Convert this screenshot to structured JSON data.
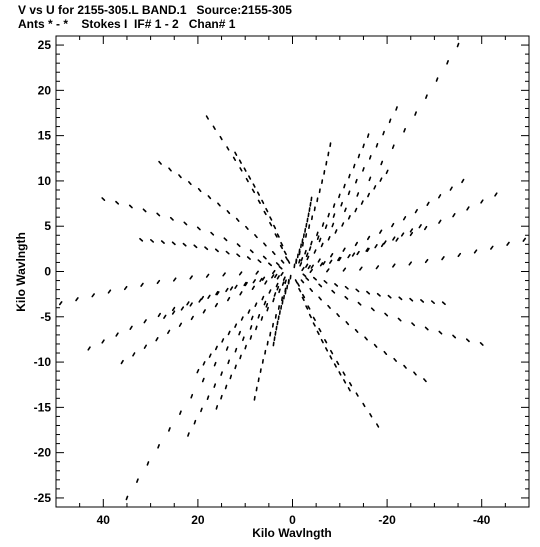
{
  "header": {
    "line1": "V vs U for 2155-305.L BAND.1   Source:2155-305",
    "line2": "Ants * - *    Stokes I  IF# 1 - 2   Chan# 1"
  },
  "chart_data": {
    "type": "scatter",
    "xlabel": "Kilo Wavlngth",
    "ylabel": "Kilo Wavlngth",
    "xlim": [
      50,
      -50
    ],
    "ylim": [
      -26,
      26
    ],
    "x_ticks": [
      40,
      20,
      0,
      -20,
      -40
    ],
    "y_ticks": [
      -25,
      -20,
      -15,
      -10,
      -5,
      0,
      5,
      10,
      15,
      20,
      25
    ],
    "grid": false,
    "series": [
      {
        "baselines": [
          {
            "dx": -35,
            "dy": 25
          },
          {
            "dx": -16,
            "dy": 15
          },
          {
            "dx": -49,
            "dy": 3.5
          },
          {
            "dx": -43,
            "dy": 8.5
          },
          {
            "dx": -20,
            "dy": 11
          },
          {
            "dx": -8,
            "dy": 14
          },
          {
            "dx": 18,
            "dy": 17
          },
          {
            "dx": 32,
            "dy": 3.5
          },
          {
            "dx": 40,
            "dy": 8
          },
          {
            "dx": -27,
            "dy": 5
          },
          {
            "dx": -36,
            "dy": 10
          },
          {
            "dx": 12,
            "dy": 13
          },
          {
            "dx": -22,
            "dy": 18
          },
          {
            "dx": 28,
            "dy": 12
          },
          {
            "dx": -4,
            "dy": 8
          }
        ],
        "steps": 14,
        "t_start": 0.08,
        "t_end": 1.0,
        "curve": 0.12
      }
    ]
  }
}
